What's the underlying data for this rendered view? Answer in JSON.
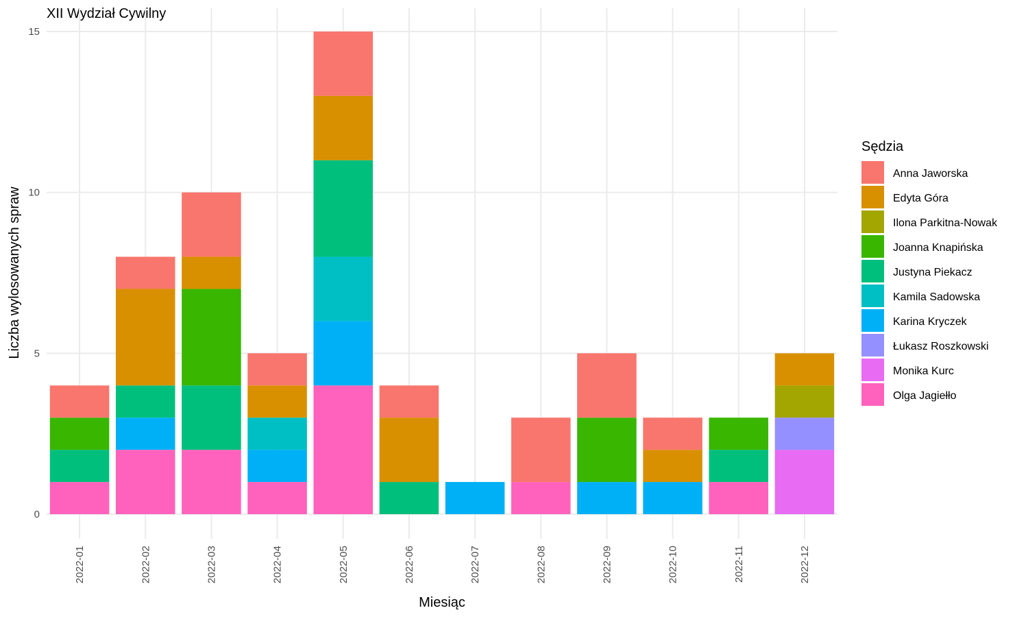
{
  "chart_data": {
    "type": "bar",
    "stacked": true,
    "title": "XII Wydział Cywilny",
    "xlabel": "Miesiąc",
    "ylabel": "Liczba wylosowanych spraw",
    "ylim": [
      0,
      15
    ],
    "yticks": [
      0,
      5,
      10,
      15
    ],
    "grid": true,
    "legend_position": "right",
    "legend_title": "Sędzia",
    "categories": [
      "2022-01",
      "2022-02",
      "2022-03",
      "2022-04",
      "2022-05",
      "2022-06",
      "2022-07",
      "2022-08",
      "2022-09",
      "2022-10",
      "2022-11",
      "2022-12"
    ],
    "series": [
      {
        "name": "Anna Jaworska",
        "color": "#F8766D",
        "values": [
          1,
          1,
          2,
          1,
          2,
          1,
          0,
          2,
          2,
          1,
          0,
          0
        ]
      },
      {
        "name": "Edyta Góra",
        "color": "#D89000",
        "values": [
          0,
          3,
          1,
          1,
          2,
          2,
          0,
          0,
          0,
          1,
          0,
          1
        ]
      },
      {
        "name": "Ilona Parkitna-Nowak",
        "color": "#A3A500",
        "values": [
          0,
          0,
          0,
          0,
          0,
          0,
          0,
          0,
          0,
          0,
          0,
          1
        ]
      },
      {
        "name": "Joanna Knapińska",
        "color": "#39B600",
        "values": [
          1,
          0,
          3,
          0,
          0,
          0,
          0,
          0,
          2,
          0,
          1,
          0
        ]
      },
      {
        "name": "Justyna Piekacz",
        "color": "#00BF7D",
        "values": [
          1,
          1,
          2,
          0,
          3,
          1,
          0,
          0,
          0,
          0,
          1,
          0
        ]
      },
      {
        "name": "Kamila Sadowska",
        "color": "#00BFC4",
        "values": [
          0,
          0,
          0,
          1,
          2,
          0,
          0,
          0,
          0,
          0,
          0,
          0
        ]
      },
      {
        "name": "Karina Kryczek",
        "color": "#00B0F6",
        "values": [
          0,
          1,
          0,
          1,
          2,
          0,
          1,
          0,
          1,
          1,
          0,
          0
        ]
      },
      {
        "name": "Łukasz Roszkowski",
        "color": "#9590FF",
        "values": [
          0,
          0,
          0,
          0,
          0,
          0,
          0,
          0,
          0,
          0,
          0,
          1
        ]
      },
      {
        "name": "Monika Kurc",
        "color": "#E76BF3",
        "values": [
          0,
          0,
          0,
          0,
          0,
          0,
          0,
          0,
          0,
          0,
          0,
          2
        ]
      },
      {
        "name": "Olga Jagiełło",
        "color": "#FF62BC",
        "values": [
          1,
          2,
          2,
          1,
          4,
          0,
          0,
          1,
          0,
          0,
          1,
          0
        ]
      }
    ]
  }
}
